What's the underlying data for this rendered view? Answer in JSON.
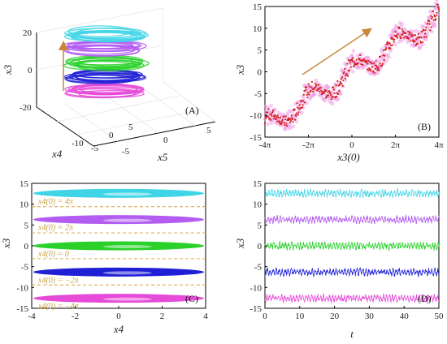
{
  "chart_data": [
    {
      "panel": "(A)",
      "type": "line",
      "title": "",
      "axis_labels": {
        "z": "x3",
        "x": "x4",
        "y": "x5"
      },
      "z_ticks": [
        "20",
        "0",
        "-20"
      ],
      "x_ticks": [
        "-5",
        "0",
        "5"
      ],
      "y_ticks": [
        "-10",
        "-5",
        "0",
        "5"
      ],
      "note": "3D stacked chaotic attractors along x3 axis",
      "series": [
        {
          "color": "#e64ad8",
          "x3_center": -12
        },
        {
          "color": "#1f1fd6",
          "x3_center": -6
        },
        {
          "color": "#29d12a",
          "x3_center": 0
        },
        {
          "color": "#b35cf2",
          "x3_center": 6
        },
        {
          "color": "#3fd5e6",
          "x3_center": 12
        }
      ]
    },
    {
      "panel": "(B)",
      "type": "scatter",
      "title": "",
      "xlabel": "x3(0)",
      "ylabel": "x3",
      "xlim": [
        -12.566,
        12.566
      ],
      "ylim": [
        -15,
        15
      ],
      "x_ticks": [
        "-4π",
        "-2π",
        "0",
        "2π",
        "4π"
      ],
      "y_ticks": [
        "-15",
        "-10",
        "-5",
        "0",
        "5",
        "10",
        "15"
      ],
      "trend": [
        [
          -12.566,
          -12
        ],
        [
          -6.283,
          -6
        ],
        [
          0,
          0
        ],
        [
          6.283,
          6
        ],
        [
          12.566,
          12
        ]
      ],
      "colors": {
        "points": "#d41e1e",
        "halo": "#f0a0e8",
        "arrow": "#c8883a"
      }
    },
    {
      "panel": "(C)",
      "type": "line",
      "title": "",
      "xlabel": "x4",
      "ylabel": "x3",
      "xlim": [
        -4,
        4
      ],
      "ylim": [
        -15,
        15
      ],
      "x_ticks": [
        "-4",
        "-2",
        "0",
        "2",
        "4"
      ],
      "y_ticks": [
        "-15",
        "-10",
        "-5",
        "0",
        "5",
        "10",
        "15"
      ],
      "bands": [
        {
          "label": "x4(0) = 4π",
          "center": 12.6,
          "color": "#3fd5e6"
        },
        {
          "label": "x4(0) = 2π",
          "center": 6.3,
          "color": "#b35cf2"
        },
        {
          "label": "x4(0) = 0",
          "center": 0,
          "color": "#29d12a"
        },
        {
          "label": "x4(0) = −2π",
          "center": -6.3,
          "color": "#1f1fd6"
        },
        {
          "label": "x4(0) = −4π",
          "center": -12.6,
          "color": "#e64ad8"
        }
      ],
      "separators": [
        9.4,
        3.1,
        -3.1,
        -9.4
      ],
      "separator_color": "#d9a040"
    },
    {
      "panel": "(D)",
      "type": "line",
      "title": "",
      "xlabel": "t",
      "ylabel": "x3",
      "xlim": [
        0,
        50
      ],
      "ylim": [
        -15,
        15
      ],
      "x_ticks": [
        "0",
        "10",
        "20",
        "30",
        "40",
        "50"
      ],
      "y_ticks": [
        "-15",
        "-10",
        "-5",
        "0",
        "5",
        "10",
        "15"
      ],
      "series": [
        {
          "center": 12.6,
          "amp": 0.9,
          "color": "#3fd5e6"
        },
        {
          "center": 6.3,
          "amp": 0.9,
          "color": "#b35cf2"
        },
        {
          "center": 0,
          "amp": 0.9,
          "color": "#29d12a"
        },
        {
          "center": -6.3,
          "amp": 0.9,
          "color": "#1f1fd6"
        },
        {
          "center": -12.6,
          "amp": 0.9,
          "color": "#e64ad8"
        }
      ]
    }
  ]
}
